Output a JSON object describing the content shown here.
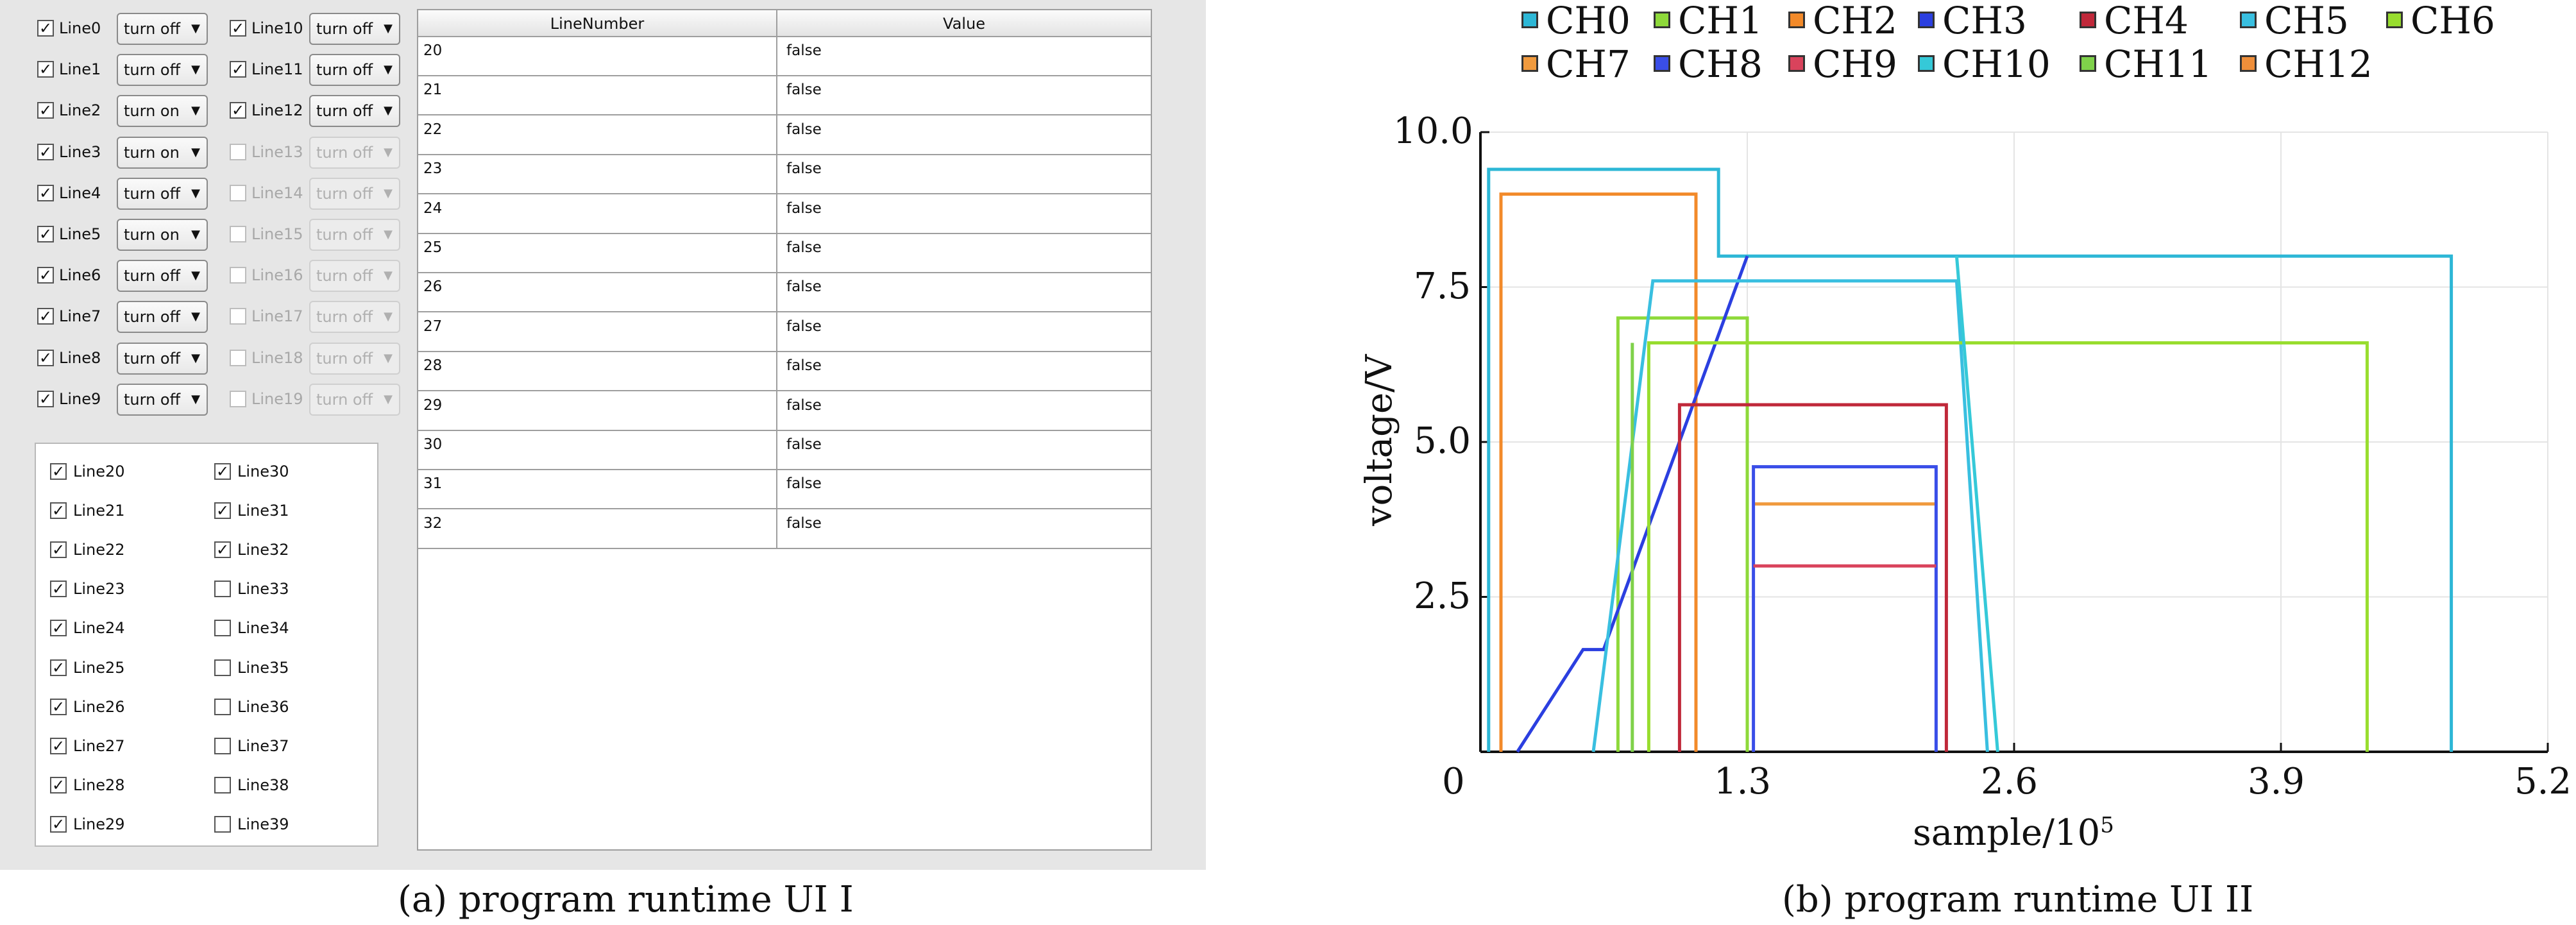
{
  "panel_a": {
    "lines_0_19": [
      {
        "label": "Line0",
        "checked": true,
        "enabled": true,
        "action": "turn off"
      },
      {
        "label": "Line1",
        "checked": true,
        "enabled": true,
        "action": "turn off"
      },
      {
        "label": "Line2",
        "checked": true,
        "enabled": true,
        "action": "turn on"
      },
      {
        "label": "Line3",
        "checked": true,
        "enabled": true,
        "action": "turn on"
      },
      {
        "label": "Line4",
        "checked": true,
        "enabled": true,
        "action": "turn off"
      },
      {
        "label": "Line5",
        "checked": true,
        "enabled": true,
        "action": "turn on"
      },
      {
        "label": "Line6",
        "checked": true,
        "enabled": true,
        "action": "turn off"
      },
      {
        "label": "Line7",
        "checked": true,
        "enabled": true,
        "action": "turn off"
      },
      {
        "label": "Line8",
        "checked": true,
        "enabled": true,
        "action": "turn off"
      },
      {
        "label": "Line9",
        "checked": true,
        "enabled": true,
        "action": "turn off"
      },
      {
        "label": "Line10",
        "checked": true,
        "enabled": true,
        "action": "turn off"
      },
      {
        "label": "Line11",
        "checked": true,
        "enabled": true,
        "action": "turn off"
      },
      {
        "label": "Line12",
        "checked": true,
        "enabled": true,
        "action": "turn off"
      },
      {
        "label": "Line13",
        "checked": false,
        "enabled": false,
        "action": "turn off"
      },
      {
        "label": "Line14",
        "checked": false,
        "enabled": false,
        "action": "turn off"
      },
      {
        "label": "Line15",
        "checked": false,
        "enabled": false,
        "action": "turn off"
      },
      {
        "label": "Line16",
        "checked": false,
        "enabled": false,
        "action": "turn off"
      },
      {
        "label": "Line17",
        "checked": false,
        "enabled": false,
        "action": "turn off"
      },
      {
        "label": "Line18",
        "checked": false,
        "enabled": false,
        "action": "turn off"
      },
      {
        "label": "Line19",
        "checked": false,
        "enabled": false,
        "action": "turn off"
      }
    ],
    "lines_20_39": [
      {
        "label": "Line20",
        "checked": true
      },
      {
        "label": "Line21",
        "checked": true
      },
      {
        "label": "Line22",
        "checked": true
      },
      {
        "label": "Line23",
        "checked": true
      },
      {
        "label": "Line24",
        "checked": true
      },
      {
        "label": "Line25",
        "checked": true
      },
      {
        "label": "Line26",
        "checked": true
      },
      {
        "label": "Line27",
        "checked": true
      },
      {
        "label": "Line28",
        "checked": true
      },
      {
        "label": "Line29",
        "checked": true
      },
      {
        "label": "Line30",
        "checked": true
      },
      {
        "label": "Line31",
        "checked": true
      },
      {
        "label": "Line32",
        "checked": true
      },
      {
        "label": "Line33",
        "checked": false
      },
      {
        "label": "Line34",
        "checked": false
      },
      {
        "label": "Line35",
        "checked": false
      },
      {
        "label": "Line36",
        "checked": false
      },
      {
        "label": "Line37",
        "checked": false
      },
      {
        "label": "Line38",
        "checked": false
      },
      {
        "label": "Line39",
        "checked": false
      }
    ],
    "table": {
      "headers": [
        "LineNumber",
        "Value"
      ],
      "rows": [
        [
          "20",
          "false"
        ],
        [
          "21",
          "false"
        ],
        [
          "22",
          "false"
        ],
        [
          "23",
          "false"
        ],
        [
          "24",
          "false"
        ],
        [
          "25",
          "false"
        ],
        [
          "26",
          "false"
        ],
        [
          "27",
          "false"
        ],
        [
          "28",
          "false"
        ],
        [
          "29",
          "false"
        ],
        [
          "30",
          "false"
        ],
        [
          "31",
          "false"
        ],
        [
          "32",
          "false"
        ]
      ]
    },
    "caption": "(a) program runtime UI I"
  },
  "panel_b": {
    "caption": "(b) program runtime UI II"
  },
  "chart_data": {
    "type": "line",
    "xlabel": "sample/10",
    "xlabel_sup": "5",
    "ylabel": "voltage/V",
    "xlim": [
      0,
      5.2
    ],
    "ylim": [
      0,
      10
    ],
    "xticks": [
      "0",
      "1.3",
      "2.6",
      "3.9",
      "5.2"
    ],
    "xtick_values": [
      0,
      1.3,
      2.6,
      3.9,
      5.2
    ],
    "yticks": [
      "2.5",
      "5.0",
      "7.5",
      "10.0"
    ],
    "ytick_values": [
      2.5,
      5.0,
      7.5,
      10.0
    ],
    "grid": true,
    "legend_position": "top",
    "series": [
      {
        "name": "CH0",
        "color": "#2db7d6",
        "x": [
          0.04,
          0.04,
          1.16,
          1.16,
          4.73,
          4.73
        ],
        "y": [
          0,
          9.4,
          9.4,
          8.0,
          8.0,
          0
        ]
      },
      {
        "name": "CH1",
        "color": "#8ed93a",
        "x": [
          0.67,
          0.67,
          1.3,
          1.3
        ],
        "y": [
          0,
          7.0,
          7.0,
          0
        ]
      },
      {
        "name": "CH2",
        "color": "#f28a2a",
        "x": [
          0.1,
          0.1,
          1.05,
          1.05
        ],
        "y": [
          0,
          9.0,
          9.0,
          0
        ]
      },
      {
        "name": "CH3",
        "color": "#2b3fe0",
        "x": [
          0.18,
          0.5,
          0.6,
          1.3
        ],
        "y": [
          0,
          1.65,
          1.65,
          8.0
        ]
      },
      {
        "name": "CH4",
        "color": "#c0283a",
        "x": [
          0.97,
          0.97,
          2.27,
          2.27
        ],
        "y": [
          0,
          5.6,
          5.6,
          0
        ]
      },
      {
        "name": "CH5",
        "color": "#39bfe0",
        "x": [
          0.55,
          0.84,
          2.32,
          2.47
        ],
        "y": [
          0,
          7.6,
          7.6,
          0
        ]
      },
      {
        "name": "CH6",
        "color": "#98dd2e",
        "x": [
          0.82,
          0.82,
          4.32,
          4.32
        ],
        "y": [
          0,
          6.6,
          6.6,
          0
        ]
      },
      {
        "name": "CH7",
        "color": "#f09a3e",
        "x": [
          1.33,
          2.22
        ],
        "y": [
          4.0,
          4.0
        ]
      },
      {
        "name": "CH8",
        "color": "#3a4ee8",
        "x": [
          1.33,
          1.33,
          2.22,
          2.22
        ],
        "y": [
          0,
          4.6,
          4.6,
          0
        ]
      },
      {
        "name": "CH9",
        "color": "#d9435c",
        "x": [
          1.33,
          2.22
        ],
        "y": [
          3.0,
          3.0
        ]
      },
      {
        "name": "CH10",
        "color": "#35c9d8",
        "x": [
          2.32,
          2.52
        ],
        "y": [
          8.0,
          0
        ]
      },
      {
        "name": "CH11",
        "color": "#7fd14a",
        "x": [
          0.74,
          0.74
        ],
        "y": [
          0,
          6.6
        ]
      },
      {
        "name": "CH12",
        "color": "#ee8e3a",
        "x": [],
        "y": []
      }
    ]
  }
}
